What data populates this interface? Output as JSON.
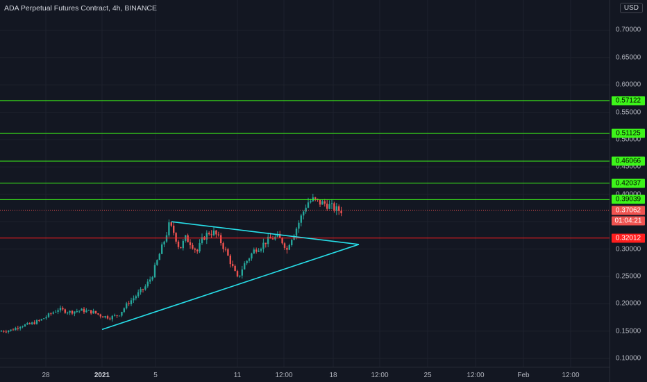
{
  "header": {
    "title": "ADA Perpetual Futures Contract, 4h, BINANCE",
    "currency": "USD"
  },
  "colors": {
    "background": "#131722",
    "up_candle": "#26a69a",
    "down_candle": "#ef5350",
    "support_resistance_green": "#3df51a",
    "resistance_red": "#ff1e1e",
    "triangle": "#27e0ea",
    "current_price_badge": "#ef5350"
  },
  "chart_data": {
    "type": "candlestick",
    "title": "ADA Perpetual Futures Contract, 4h, BINANCE",
    "ylim": [
      0.085,
      0.755
    ],
    "y_ticks": [
      "0.70000",
      "0.65000",
      "0.60000",
      "0.55000",
      "0.50000",
      "0.45000",
      "0.40000",
      "0.35000",
      "0.30000",
      "0.25000",
      "0.20000",
      "0.15000",
      "0.10000"
    ],
    "x_ticks": [
      "28",
      "2021",
      "5",
      "11",
      "12:00",
      "18",
      "12:00",
      "25",
      "12:00",
      "Feb",
      "12:00"
    ],
    "x_ticks_bold": [
      "2021"
    ],
    "horizontal_levels": [
      {
        "price": 0.57122,
        "label": "0.57122",
        "color": "#3df51a"
      },
      {
        "price": 0.51125,
        "label": "0.51125",
        "color": "#3df51a"
      },
      {
        "price": 0.46066,
        "label": "0.46066",
        "color": "#3df51a"
      },
      {
        "price": 0.42037,
        "label": "0.42037",
        "color": "#3df51a"
      },
      {
        "price": 0.39039,
        "label": "0.39039",
        "color": "#3df51a"
      },
      {
        "price": 0.32012,
        "label": "0.32012",
        "color": "#ff1e1e"
      }
    ],
    "current_price": {
      "price": 0.37062,
      "label": "0.37062",
      "countdown": "01:04:21"
    },
    "triangle_pattern": {
      "upper_line": [
        [
          0.0,
          0.35
        ],
        [
          1.0,
          0.3085
        ]
      ],
      "lower_line": [
        [
          -0.37,
          0.153
        ],
        [
          1.0,
          0.3085
        ]
      ]
    },
    "candle_path": [
      [
        0.0,
        0.15
      ],
      [
        0.02,
        0.152
      ],
      [
        0.035,
        0.16
      ],
      [
        0.05,
        0.162
      ],
      [
        0.07,
        0.17
      ],
      [
        0.085,
        0.18
      ],
      [
        0.1,
        0.19
      ],
      [
        0.12,
        0.185
      ],
      [
        0.14,
        0.188
      ],
      [
        0.16,
        0.185
      ],
      [
        0.175,
        0.178
      ],
      [
        0.19,
        0.175
      ],
      [
        0.205,
        0.18
      ],
      [
        0.22,
        0.2
      ],
      [
        0.235,
        0.215
      ],
      [
        0.25,
        0.23
      ],
      [
        0.262,
        0.25
      ],
      [
        0.275,
        0.29
      ],
      [
        0.285,
        0.32
      ],
      [
        0.292,
        0.345
      ],
      [
        0.3,
        0.33
      ],
      [
        0.31,
        0.3
      ],
      [
        0.32,
        0.32
      ],
      [
        0.33,
        0.31
      ],
      [
        0.34,
        0.295
      ],
      [
        0.35,
        0.32
      ],
      [
        0.36,
        0.33
      ],
      [
        0.37,
        0.33
      ],
      [
        0.38,
        0.315
      ],
      [
        0.39,
        0.295
      ],
      [
        0.4,
        0.27
      ],
      [
        0.41,
        0.245
      ],
      [
        0.42,
        0.27
      ],
      [
        0.43,
        0.285
      ],
      [
        0.44,
        0.3
      ],
      [
        0.45,
        0.305
      ],
      [
        0.46,
        0.315
      ],
      [
        0.47,
        0.32
      ],
      [
        0.48,
        0.322
      ],
      [
        0.49,
        0.31
      ],
      [
        0.495,
        0.298
      ],
      [
        0.5,
        0.315
      ],
      [
        0.51,
        0.335
      ],
      [
        0.52,
        0.36
      ],
      [
        0.53,
        0.385
      ],
      [
        0.54,
        0.39
      ],
      [
        0.55,
        0.385
      ],
      [
        0.56,
        0.383
      ],
      [
        0.57,
        0.378
      ],
      [
        0.58,
        0.372
      ],
      [
        0.59,
        0.37
      ]
    ]
  }
}
